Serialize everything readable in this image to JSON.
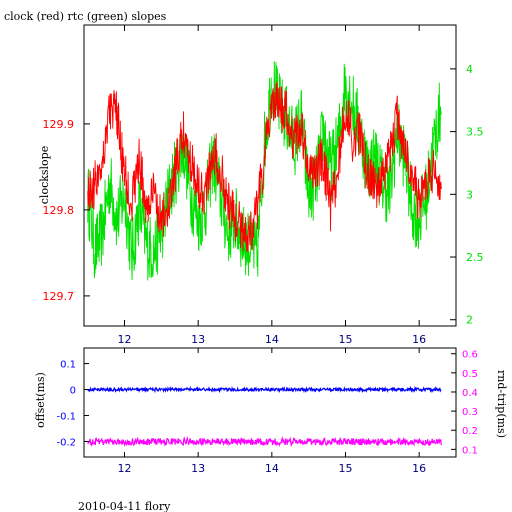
{
  "title": "clock (red) rtc (green) slopes",
  "footer": "2010-04-11 flory",
  "colors": {
    "clock": "#ff0000",
    "rtc": "#00e000",
    "offset": "#0000ff",
    "rndtrip": "#ff00ff",
    "xaxis": "#000080",
    "axis": "#000000"
  },
  "chart_data": [
    {
      "type": "line",
      "title": "clock (red) rtc (green) slopes",
      "xlabel": "",
      "ylabel": "clockslope",
      "y2label": "",
      "xlim": [
        11.45,
        16.5
      ],
      "ylim": [
        129.665,
        130.015
      ],
      "y2lim": [
        1.95,
        4.35
      ],
      "xticks": [
        "12",
        "13",
        "14",
        "15",
        "16"
      ],
      "yticks": [
        "129.7",
        "129.8",
        "129.9"
      ],
      "y2ticks": [
        "2",
        "2.5",
        "3",
        "3.5",
        "4"
      ],
      "grid": false,
      "series": [
        {
          "name": "clock (red)",
          "axis": "left",
          "color": "#ff0000",
          "x": [
            11.5,
            11.6,
            11.7,
            11.8,
            11.9,
            12.0,
            12.1,
            12.2,
            12.3,
            12.4,
            12.5,
            12.6,
            12.7,
            12.8,
            12.9,
            13.0,
            13.1,
            13.2,
            13.3,
            13.4,
            13.5,
            13.6,
            13.7,
            13.8,
            13.9,
            14.0,
            14.1,
            14.2,
            14.3,
            14.4,
            14.5,
            14.6,
            14.7,
            14.8,
            14.9,
            15.0,
            15.1,
            15.2,
            15.3,
            15.4,
            15.5,
            15.6,
            15.7,
            15.8,
            15.9,
            16.0,
            16.1,
            16.2,
            16.3
          ],
          "y": [
            129.82,
            129.83,
            129.86,
            129.92,
            129.91,
            129.84,
            129.81,
            129.86,
            129.8,
            129.82,
            129.79,
            129.8,
            129.85,
            129.89,
            129.86,
            129.83,
            129.82,
            129.87,
            129.85,
            129.81,
            129.79,
            129.78,
            129.77,
            129.8,
            129.86,
            129.93,
            129.92,
            129.91,
            129.88,
            129.9,
            129.84,
            129.85,
            129.86,
            129.8,
            129.85,
            129.92,
            129.88,
            129.89,
            129.84,
            129.83,
            129.83,
            129.86,
            129.91,
            129.87,
            129.84,
            129.81,
            129.83,
            129.85,
            129.82
          ]
        },
        {
          "name": "rtc (green)",
          "axis": "right",
          "color": "#00e000",
          "x": [
            11.5,
            11.6,
            11.7,
            11.8,
            11.9,
            12.0,
            12.1,
            12.2,
            12.3,
            12.4,
            12.5,
            12.6,
            12.7,
            12.8,
            12.9,
            13.0,
            13.1,
            13.2,
            13.3,
            13.4,
            13.5,
            13.6,
            13.7,
            13.8,
            13.9,
            14.0,
            14.1,
            14.2,
            14.3,
            14.4,
            14.5,
            14.6,
            14.7,
            14.8,
            14.9,
            15.0,
            15.1,
            15.2,
            15.3,
            15.4,
            15.5,
            15.6,
            15.7,
            15.8,
            15.9,
            16.0,
            16.1,
            16.2,
            16.3
          ],
          "y": [
            3.0,
            2.55,
            2.7,
            3.1,
            2.8,
            3.0,
            2.5,
            2.9,
            2.6,
            2.55,
            2.7,
            3.0,
            3.2,
            3.4,
            3.0,
            2.8,
            2.9,
            3.3,
            3.0,
            2.7,
            2.8,
            2.65,
            2.6,
            2.5,
            3.4,
            3.9,
            3.7,
            3.6,
            3.4,
            3.6,
            3.0,
            3.1,
            3.5,
            3.2,
            3.4,
            3.9,
            3.7,
            3.5,
            3.2,
            3.3,
            3.1,
            3.0,
            3.5,
            3.3,
            2.9,
            2.8,
            3.0,
            3.4,
            3.7
          ]
        }
      ]
    },
    {
      "type": "scatter",
      "xlabel": "",
      "ylabel": "offset(ms)",
      "y2label": "rnd-trip(ms)",
      "xlim": [
        11.45,
        16.5
      ],
      "ylim": [
        -0.26,
        0.16
      ],
      "y2lim": [
        0.06,
        0.63
      ],
      "xticks": [
        "12",
        "13",
        "14",
        "15",
        "16"
      ],
      "yticks": [
        "0.1",
        "0",
        "-0.1",
        "-0.2"
      ],
      "y2ticks": [
        "0.1",
        "0.2",
        "0.3",
        "0.4",
        "0.5",
        "0.6"
      ],
      "grid": false,
      "series": [
        {
          "name": "offset",
          "axis": "left",
          "color": "#0000ff",
          "x": [
            11.5,
            12.0,
            12.5,
            13.0,
            13.5,
            14.0,
            14.5,
            15.0,
            15.5,
            16.0,
            16.3
          ],
          "y": [
            0.0,
            0.0,
            0.0,
            0.0,
            0.0,
            0.0,
            0.0,
            0.0,
            0.0,
            0.0,
            0.0
          ]
        },
        {
          "name": "rnd-trip",
          "axis": "right",
          "color": "#ff00ff",
          "x": [
            11.5,
            12.0,
            12.5,
            13.0,
            13.5,
            14.0,
            14.5,
            15.0,
            15.5,
            16.0,
            16.3
          ],
          "y": [
            0.14,
            0.14,
            0.14,
            0.14,
            0.14,
            0.14,
            0.14,
            0.14,
            0.14,
            0.14,
            0.14
          ]
        }
      ]
    }
  ]
}
